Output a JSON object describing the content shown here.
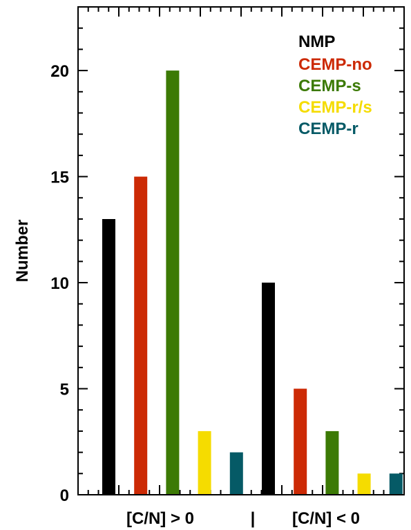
{
  "chart_data": {
    "type": "bar",
    "xlabel": "",
    "ylabel": "Number",
    "ylim": [
      0,
      23
    ],
    "yticks": [
      0,
      5,
      10,
      15,
      20
    ],
    "grid": false,
    "legend_position": "top-right",
    "group_labels": [
      "[C/N] > 0",
      "|",
      "[C/N] < 0"
    ],
    "series": [
      {
        "name": "NMP",
        "color": "#000000"
      },
      {
        "name": "CEMP-no",
        "color": "#cc2a05"
      },
      {
        "name": "CEMP-s",
        "color": "#3c7a05"
      },
      {
        "name": "CEMP-r/s",
        "color": "#f5dc00"
      },
      {
        "name": "CEMP-r",
        "color": "#055a66"
      }
    ],
    "groups": [
      {
        "label": "[C/N] > 0",
        "values": [
          13,
          15,
          20,
          3,
          2
        ]
      },
      {
        "label": "[C/N] < 0",
        "values": [
          10,
          5,
          3,
          1,
          1
        ]
      }
    ]
  }
}
